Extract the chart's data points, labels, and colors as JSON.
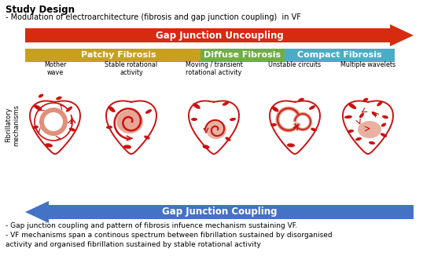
{
  "title": "Study Design",
  "subtitle": "- Modulation of electroarchitecture (fibrosis and gap junction coupling)  in VF",
  "red_arrow_label": "Gap Junction Uncoupling",
  "blue_arrow_label": "Gap Junction Coupling",
  "fibrosis_labels": [
    "Patchy Fibrosis",
    "Diffuse Fibrosis",
    "Compact Fibrosis"
  ],
  "mechanism_labels": [
    "Mother\nwave",
    "Stable rotational\nactivity",
    "Moving / transient\nrotational activity",
    "Unstable circuits",
    "Multiple wavelets"
  ],
  "ylabel": "Fibrillatory\nmechanisms",
  "bottom_text1": "- Gap junction coupling and pattern of fibrosis infuence mechanism sustaining VF.",
  "bottom_text2": "- VF mechanisms span a continous spectrum between fibrillation sustained by disorganised",
  "bottom_text3": "activity and organised fibrillation sustained by stable rotational activity",
  "bg_color": "#FFFFFF",
  "red_arrow_color": "#D62B0F",
  "blue_arrow_color": "#4472C4",
  "yellow_color": "#C8A020",
  "green_color": "#70AD47",
  "cyan_color": "#4BACC6",
  "red_heart_color": "#CC1111",
  "salmon_color": "#E0907A"
}
